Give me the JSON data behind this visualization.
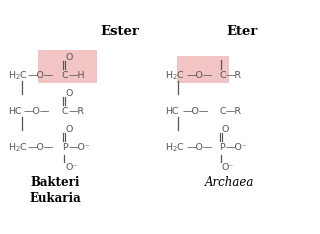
{
  "background_color": "#ffffff",
  "highlight_color": "#f2c4c4",
  "line_color": "#555555",
  "figsize": [
    3.2,
    2.34
  ],
  "dpi": 100,
  "title_ester": "Ester",
  "title_eter": "Eter",
  "label_left": "Bakteri\nEukaria",
  "label_right": "Archaea"
}
